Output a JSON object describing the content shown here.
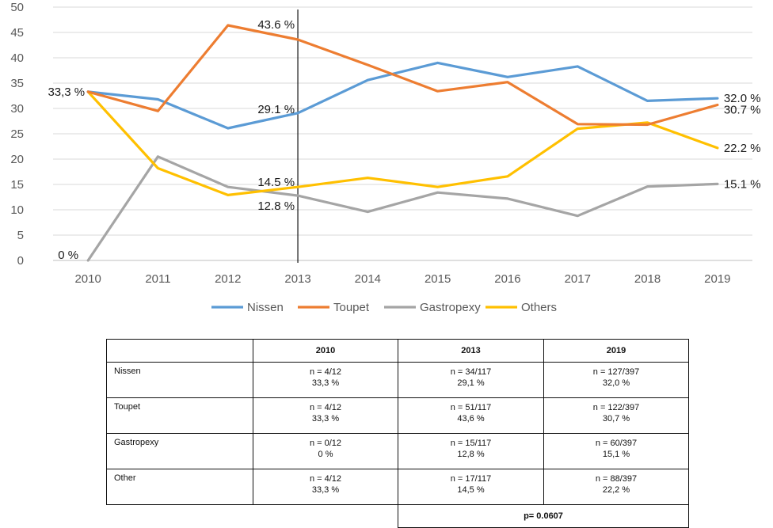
{
  "chart_data": {
    "type": "line",
    "title": "",
    "xlabel": "",
    "ylabel": "",
    "ylim": [
      0,
      50
    ],
    "yticks": [
      0,
      5,
      10,
      15,
      20,
      25,
      30,
      35,
      40,
      45,
      50
    ],
    "x": [
      "2010",
      "2011",
      "2012",
      "2013",
      "2014",
      "2015",
      "2016",
      "2017",
      "2018",
      "2019"
    ],
    "series": [
      {
        "name": "Nissen",
        "color": "#5b9bd5",
        "values": [
          33.3,
          31.8,
          26.1,
          29.1,
          35.6,
          39.0,
          36.2,
          38.3,
          31.5,
          32.0
        ]
      },
      {
        "name": "Toupet",
        "color": "#ed7d31",
        "values": [
          33.3,
          29.5,
          46.4,
          43.6,
          38.6,
          33.4,
          35.2,
          26.9,
          26.8,
          30.7
        ]
      },
      {
        "name": "Gastropexy",
        "color": "#a5a5a5",
        "values": [
          0,
          20.5,
          14.5,
          12.8,
          9.6,
          13.4,
          12.2,
          8.8,
          14.6,
          15.1
        ]
      },
      {
        "name": "Others",
        "color": "#ffc000",
        "values": [
          33.3,
          18.2,
          12.9,
          14.5,
          16.3,
          14.5,
          16.6,
          26.0,
          27.2,
          22.2
        ]
      }
    ],
    "reference_line_at": "2013",
    "annotations": [
      {
        "text": "33,3 %",
        "x": "2010",
        "y": 33.3,
        "anchor": "end"
      },
      {
        "text": "0 %",
        "x": "2010",
        "y": 0,
        "anchor": "end"
      },
      {
        "text": "43.6 %",
        "x": "2013",
        "y": 43.6,
        "anchor": "end"
      },
      {
        "text": "29.1 %",
        "x": "2013",
        "y": 29.1,
        "anchor": "end"
      },
      {
        "text": "14.5 %",
        "x": "2013",
        "y": 14.5,
        "anchor": "end"
      },
      {
        "text": "12.8 %",
        "x": "2013",
        "y": 12.8,
        "anchor": "end"
      },
      {
        "text": "32.0 %",
        "x": "2019",
        "y": 32.0,
        "anchor": "start"
      },
      {
        "text": "30.7 %",
        "x": "2019",
        "y": 30.7,
        "anchor": "start"
      },
      {
        "text": "22.2 %",
        "x": "2019",
        "y": 22.2,
        "anchor": "start"
      },
      {
        "text": "15.1 %",
        "x": "2019",
        "y": 15.1,
        "anchor": "start"
      }
    ],
    "legend_position": "bottom",
    "legend": [
      "Nissen",
      "Toupet",
      "Gastropexy",
      "Others"
    ]
  },
  "table": {
    "headers": [
      "",
      "2010",
      "2013",
      "2019"
    ],
    "rows": [
      {
        "label": "Nissen",
        "cells": [
          [
            "n = 4/12",
            "33,3 %"
          ],
          [
            "n = 34/117",
            "29,1 %"
          ],
          [
            "n = 127/397",
            "32,0 %"
          ]
        ]
      },
      {
        "label": "Toupet",
        "cells": [
          [
            "n = 4/12",
            "33,3 %"
          ],
          [
            "n = 51/117",
            "43,6 %"
          ],
          [
            "n = 122/397",
            "30,7 %"
          ]
        ]
      },
      {
        "label": "Gastropexy",
        "cells": [
          [
            "n = 0/12",
            "0 %"
          ],
          [
            "n = 15/117",
            "12,8 %"
          ],
          [
            "n = 60/397",
            "15,1 %"
          ]
        ]
      },
      {
        "label": "Other",
        "cells": [
          [
            "n = 4/12",
            "33,3 %"
          ],
          [
            "n = 17/117",
            "14,5 %"
          ],
          [
            "n = 88/397",
            "22,2 %"
          ]
        ]
      }
    ],
    "p_value": "p= 0.0607"
  }
}
